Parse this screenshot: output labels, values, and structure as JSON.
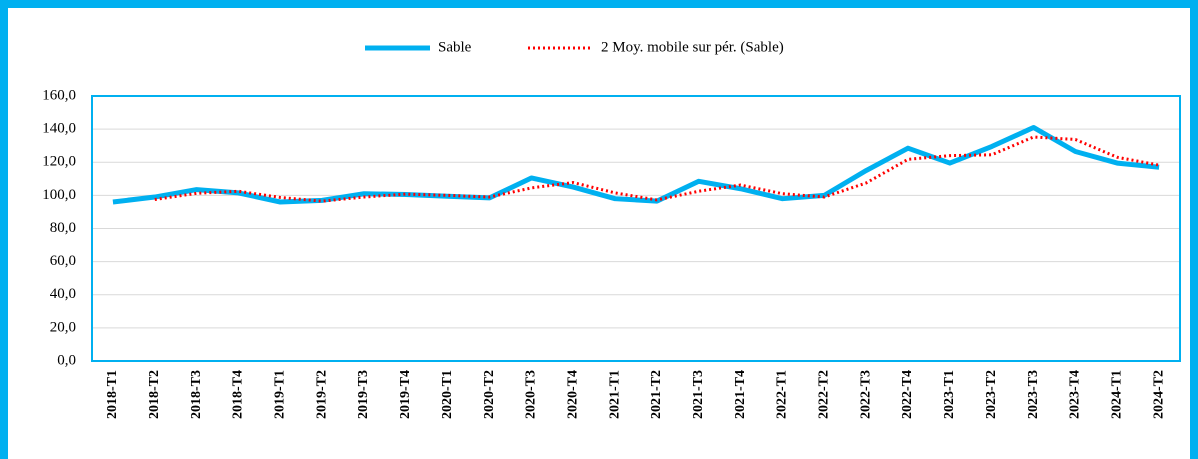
{
  "chart_data": {
    "type": "line",
    "categories": [
      "2018-T1",
      "2018-T2",
      "2018-T3",
      "2018-T4",
      "2019-T1",
      "2019-T2",
      "2019-T3",
      "2019-T4",
      "2020-T1",
      "2020-T2",
      "2020-T3",
      "2020-T4",
      "2021-T1",
      "2021-T2",
      "2021-T3",
      "2021-T4",
      "2022-T1",
      "2022-T2",
      "2022-T3",
      "2022-T4",
      "2023-T1",
      "2023-T2",
      "2023-T3",
      "2023-T4",
      "2024-T1",
      "2024-T2"
    ],
    "series": [
      {
        "name": "Sable",
        "color": "#00b0f0",
        "values": [
          96,
          99,
          103.5,
          101.5,
          96,
          97,
          101,
          100.5,
          99.5,
          98.5,
          110.5,
          105,
          98,
          96.5,
          108.5,
          104,
          98,
          100,
          115,
          128.5,
          119.5,
          129.5,
          141,
          126.5,
          119.5,
          117
        ]
      },
      {
        "name": "2 Moy. mobile sur pér. (Sable)",
        "color": "#ff0000",
        "values": [
          null,
          97.5,
          101.25,
          102.5,
          98.75,
          96.5,
          99,
          100.75,
          100,
          99,
          104.5,
          107.75,
          101.5,
          97.25,
          102.5,
          106.25,
          101,
          99,
          107.5,
          121.75,
          124,
          124.5,
          135.25,
          133.75,
          123,
          118.25
        ]
      }
    ],
    "ylim": [
      0,
      160
    ],
    "yticks": [
      {
        "value": 0,
        "label": "0,0"
      },
      {
        "value": 20,
        "label": "20,0"
      },
      {
        "value": 40,
        "label": "40,0"
      },
      {
        "value": 60,
        "label": "60,0"
      },
      {
        "value": 80,
        "label": "80,0"
      },
      {
        "value": 100,
        "label": "100,0"
      },
      {
        "value": 120,
        "label": "120,0"
      },
      {
        "value": 140,
        "label": "140,0"
      },
      {
        "value": 160,
        "label": "160,0"
      }
    ],
    "grid": true,
    "legend": "top"
  }
}
